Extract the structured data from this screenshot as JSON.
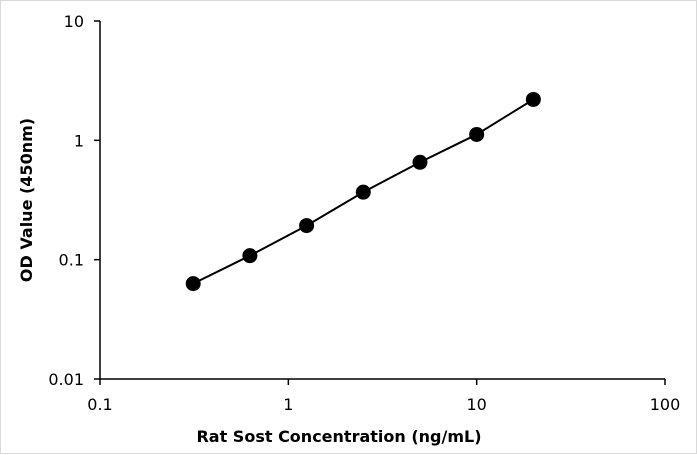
{
  "chart_data": {
    "type": "scatter",
    "title": "",
    "xlabel": "Rat Sost Concentration  (ng/mL)",
    "ylabel": "OD Value (450nm)",
    "x_scale": "log",
    "y_scale": "log",
    "xlim": [
      0.1,
      100
    ],
    "ylim": [
      0.01,
      10
    ],
    "x_tick_labels": [
      "0.1",
      "1",
      "10",
      "100"
    ],
    "y_tick_labels": [
      "0.01",
      "0.1",
      "1",
      "10"
    ],
    "x_ticks": [
      0.1,
      1,
      10,
      100
    ],
    "y_ticks": [
      0.01,
      0.1,
      1,
      10
    ],
    "grid": false,
    "legend": "none",
    "line_connected": true,
    "marker_color": "#000000",
    "line_color": "#000000",
    "series": [
      {
        "x": [
          0.3125,
          0.625,
          1.25,
          2.5,
          5,
          10,
          20
        ],
        "y": [
          0.063,
          0.108,
          0.193,
          0.368,
          0.655,
          1.12,
          2.2
        ]
      }
    ]
  }
}
